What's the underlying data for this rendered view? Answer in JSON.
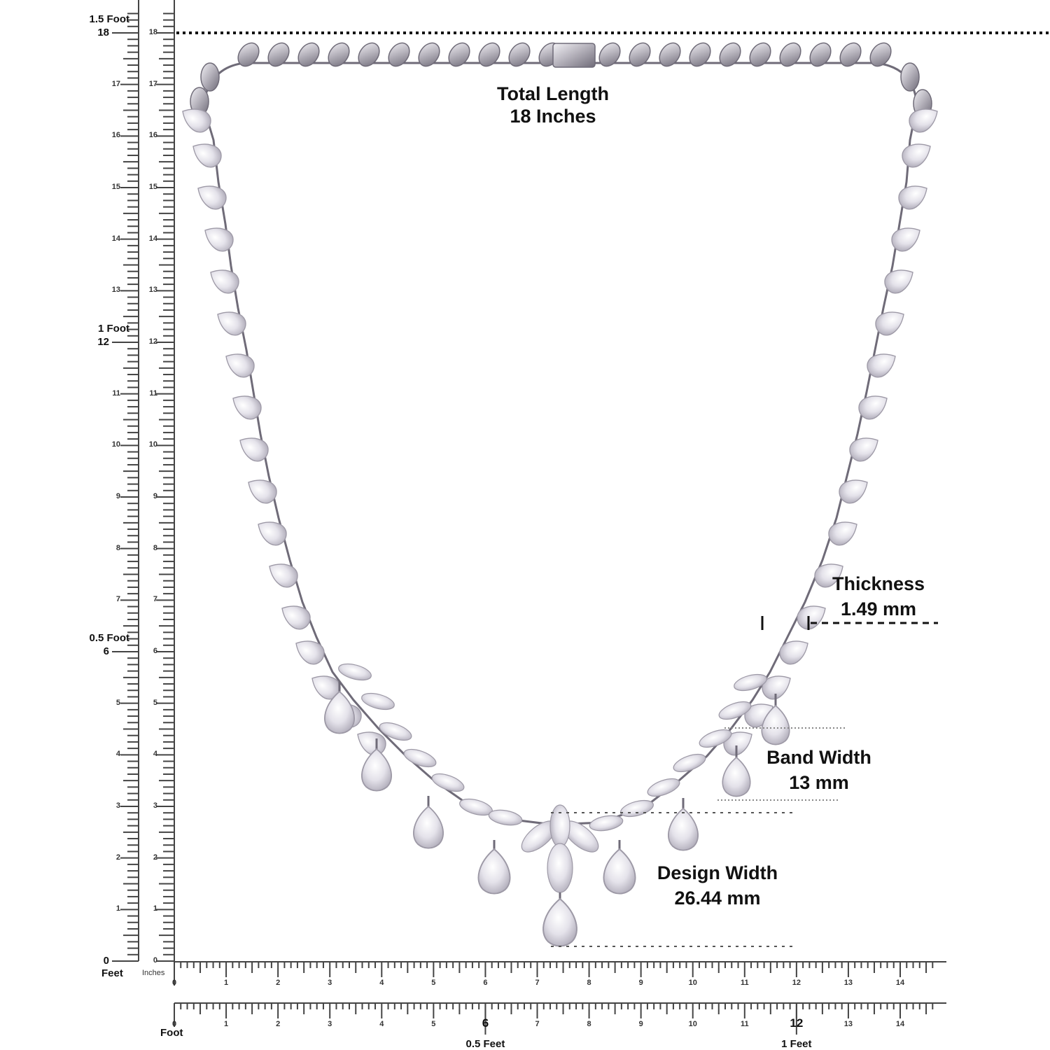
{
  "colors": {
    "ink": "#111111",
    "metal": "#b9b6bf",
    "metal_dark": "#6f6b78",
    "stone": "#e4e2ea",
    "stone_edge": "#9d99a6"
  },
  "vertical_rulers": {
    "feet_ruler": {
      "ticks_inches": [
        0,
        1,
        2,
        3,
        4,
        5,
        6,
        7,
        8,
        9,
        10,
        11,
        12,
        13,
        14,
        15,
        16,
        17,
        18
      ],
      "feet_markers": [
        {
          "inch": 6,
          "label": "0.5 Foot"
        },
        {
          "inch": 12,
          "label": "1 Foot"
        },
        {
          "inch": 18,
          "label": "1.5 Foot"
        }
      ],
      "unit_label": "Feet"
    },
    "inch_ruler": {
      "ticks_inches": [
        0,
        1,
        2,
        3,
        4,
        5,
        6,
        7,
        8,
        9,
        10,
        11,
        12,
        13,
        14,
        15,
        16,
        17,
        18
      ],
      "unit_label": "Inches"
    },
    "subdivisions_per_inch": 8
  },
  "horizontal_rulers": {
    "inch_ruler": {
      "ticks_inches": [
        0,
        1,
        2,
        3,
        4,
        5,
        6,
        7,
        8,
        9,
        10,
        11,
        12,
        13,
        14
      ]
    },
    "feet_ruler": {
      "ticks_inches": [
        0,
        1,
        2,
        3,
        4,
        5,
        6,
        7,
        8,
        9,
        10,
        11,
        12,
        13,
        14
      ],
      "unit_label": "Foot",
      "feet_markers": [
        {
          "inch": 6,
          "label": "0.5 Feet"
        },
        {
          "inch": 12,
          "label": "1 Feet"
        }
      ]
    }
  },
  "annotations": {
    "total_length": {
      "title": "Total Length",
      "value": "18 Inches"
    },
    "thickness": {
      "title": "Thickness",
      "value": "1.49 mm"
    },
    "band_width": {
      "title": "Band Width",
      "value": "13 mm"
    },
    "design_width": {
      "title": "Design Width",
      "value": "26.44 mm"
    }
  },
  "product": {
    "subject": "pear and marquise diamond drop necklace",
    "metal_tone": "white gold / silver"
  }
}
